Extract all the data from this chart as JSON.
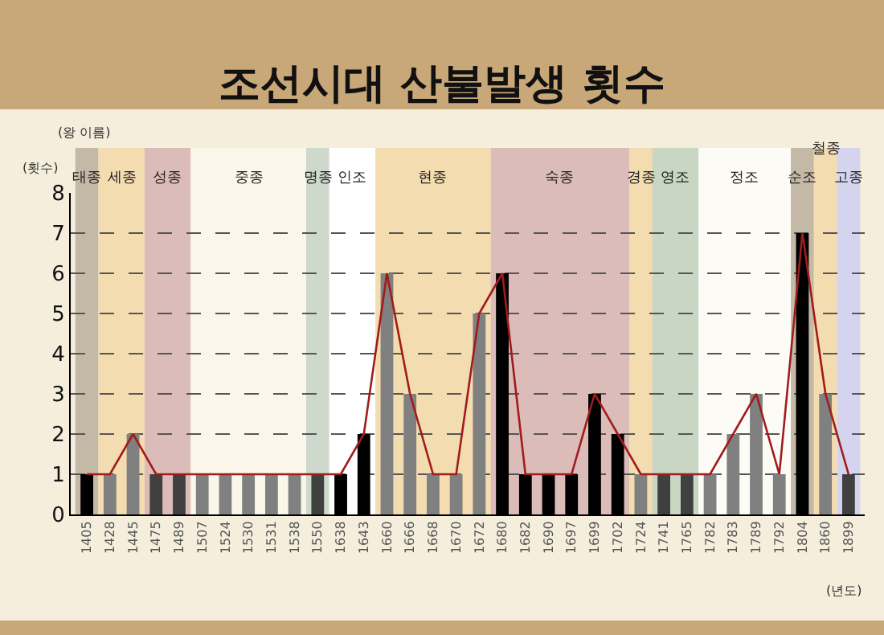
{
  "chart_data": {
    "type": "bar",
    "title": "조선시대 산불발생 횟수",
    "xlabel": "(년도)",
    "ylabel": "(횟수)",
    "annotations": [
      "(왕 이름)"
    ],
    "categories": [
      "1405",
      "1428",
      "1445",
      "1475",
      "1489",
      "1507",
      "1524",
      "1530",
      "1531",
      "1538",
      "1550",
      "1638",
      "1643",
      "1660",
      "1666",
      "1668",
      "1670",
      "1672",
      "1680",
      "1682",
      "1690",
      "1697",
      "1699",
      "1702",
      "1724",
      "1741",
      "1765",
      "1782",
      "1783",
      "1789",
      "1792",
      "1804",
      "1860",
      "1899"
    ],
    "series": [
      {
        "colors": [
          "#000000",
          "#808080",
          "#808080",
          "#404040",
          "#404040",
          "#808080",
          "#808080",
          "#808080",
          "#808080",
          "#808080",
          "#404040",
          "#000000",
          "#000000",
          "#808080",
          "#808080",
          "#808080",
          "#808080",
          "#808080",
          "#000000",
          "#000000",
          "#000000",
          "#000000",
          "#000000",
          "#000000",
          "#808080",
          "#404040",
          "#404040",
          "#808080",
          "#808080",
          "#808080",
          "#808080",
          "#000000",
          "#808080",
          "#404040"
        ],
        "values": [
          1,
          1,
          2,
          1,
          1,
          1,
          1,
          1,
          1,
          1,
          1,
          1,
          2,
          6,
          3,
          1,
          1,
          5,
          6,
          1,
          1,
          1,
          3,
          2,
          1,
          1,
          1,
          1,
          2,
          3,
          1,
          7,
          3,
          1
        ]
      },
      {
        "type": "line",
        "color": "#a01c1c",
        "values": [
          1,
          1,
          2,
          1,
          1,
          1,
          1,
          1,
          1,
          1,
          1,
          1,
          2,
          6,
          3,
          1,
          1,
          5,
          6,
          1,
          1,
          1,
          3,
          2,
          1,
          1,
          1,
          1,
          2,
          3,
          1,
          7,
          3,
          1
        ]
      }
    ],
    "bands": [
      {
        "axis": "x",
        "from": "1405",
        "to": "1405",
        "label": "태종",
        "color": "#c4b9a6"
      },
      {
        "axis": "x",
        "from": "1428",
        "to": "1445",
        "label": "세종",
        "color": "#f3dcb0"
      },
      {
        "axis": "x",
        "from": "1475",
        "to": "1489",
        "label": "성종",
        "color": "#dcbcb8"
      },
      {
        "axis": "x",
        "from": "1507",
        "to": "1538",
        "label": "중종",
        "color": "#fbf6ea"
      },
      {
        "axis": "x",
        "from": "1550",
        "to": "1550",
        "label": "명종",
        "color": "#cfd8cc"
      },
      {
        "axis": "x",
        "from": "1638",
        "to": "1643",
        "label": "인조",
        "color": "#ffffff"
      },
      {
        "axis": "x",
        "from": "1660",
        "to": "1672",
        "label": "현종",
        "color": "#f3dcb0"
      },
      {
        "axis": "x",
        "from": "1680",
        "to": "1702",
        "label": "숙종",
        "color": "#dcbcb8"
      },
      {
        "axis": "x",
        "from": "1724",
        "to": "1724",
        "label": "경종",
        "color": "#f3dcb0"
      },
      {
        "axis": "x",
        "from": "1741",
        "to": "1765",
        "label": "영조",
        "color": "#c9d6c4"
      },
      {
        "axis": "x",
        "from": "1782",
        "to": "1792",
        "label": "정조",
        "color": "#fdfbf6"
      },
      {
        "axis": "x",
        "from": "1804",
        "to": "1804",
        "label": "순조",
        "color": "#c4b9a6"
      },
      {
        "axis": "x",
        "from": "1860",
        "to": "1860",
        "label": "철종",
        "color": "#f3dcb0"
      },
      {
        "axis": "x",
        "from": "1899",
        "to": "1899",
        "label": "고종",
        "color": "#d4d4ee"
      }
    ],
    "ylim": [
      0,
      8
    ],
    "yticks": [
      0,
      1,
      2,
      3,
      4,
      5,
      6,
      7,
      8
    ],
    "grid": "y",
    "line_style": "solid",
    "marker": "none"
  }
}
